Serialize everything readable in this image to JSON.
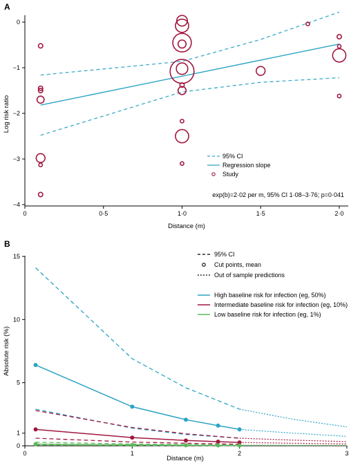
{
  "chart_data": [
    {
      "panel": "A",
      "type": "scatter",
      "xlabel": "Distance (m)",
      "ylabel": "Log risk ratio",
      "xlim": [
        0,
        2.05
      ],
      "ylim": [
        -4,
        0.2
      ],
      "x_ticks": [
        "0",
        "0·5",
        "1·0",
        "1·5",
        "2·0"
      ],
      "y_ticks": [
        "0",
        "−1",
        "−2",
        "−3",
        "−4"
      ],
      "colors": {
        "ci": "#3aaac8",
        "slope": "#2aa4c4",
        "study": "#a0173f"
      },
      "studies": [
        {
          "x": 0.1,
          "y": -0.52,
          "size": 1.0
        },
        {
          "x": 0.1,
          "y": -1.45,
          "size": 1.0
        },
        {
          "x": 0.1,
          "y": -1.5,
          "size": 1.0
        },
        {
          "x": 0.1,
          "y": -1.7,
          "size": 1.6
        },
        {
          "x": 0.1,
          "y": -2.98,
          "size": 2.0
        },
        {
          "x": 0.1,
          "y": -3.13,
          "size": 0.8
        },
        {
          "x": 0.1,
          "y": -3.78,
          "size": 1.0
        },
        {
          "x": 1.0,
          "y": 0.03,
          "size": 2.4
        },
        {
          "x": 1.0,
          "y": -0.08,
          "size": 3.0
        },
        {
          "x": 1.0,
          "y": -0.45,
          "size": 4.2
        },
        {
          "x": 1.0,
          "y": -0.48,
          "size": 1.8
        },
        {
          "x": 1.0,
          "y": -1.02,
          "size": 2.6
        },
        {
          "x": 1.0,
          "y": -1.08,
          "size": 5.4
        },
        {
          "x": 1.0,
          "y": -1.38,
          "size": 1.0
        },
        {
          "x": 1.0,
          "y": -1.5,
          "size": 1.8
        },
        {
          "x": 1.0,
          "y": -2.17,
          "size": 0.8
        },
        {
          "x": 1.0,
          "y": -2.5,
          "size": 3.0
        },
        {
          "x": 1.0,
          "y": -3.1,
          "size": 0.8
        },
        {
          "x": 1.5,
          "y": -1.07,
          "size": 2.0
        },
        {
          "x": 1.8,
          "y": -0.04,
          "size": 0.8
        },
        {
          "x": 2.0,
          "y": -0.32,
          "size": 1.0
        },
        {
          "x": 2.0,
          "y": -0.53,
          "size": 0.8
        },
        {
          "x": 2.0,
          "y": -0.73,
          "size": 3.0
        },
        {
          "x": 2.0,
          "y": -1.62,
          "size": 0.8
        }
      ],
      "slope": {
        "x": [
          0.1,
          2.0
        ],
        "y": [
          -1.82,
          -0.48
        ]
      },
      "ci_upper": {
        "x": [
          0.1,
          1.0,
          1.5,
          2.0
        ],
        "y": [
          -1.16,
          -0.86,
          -0.38,
          0.22
        ]
      },
      "ci_lower": {
        "x": [
          0.1,
          1.0,
          1.5,
          2.0
        ],
        "y": [
          -2.48,
          -1.53,
          -1.32,
          -1.22
        ]
      },
      "legend": {
        "position": "bottom-right",
        "items": [
          {
            "label": "95% CI",
            "style": "dashed"
          },
          {
            "label": "Regression slope",
            "style": "solid"
          },
          {
            "label": "Study",
            "style": "circle"
          }
        ]
      },
      "annotation": "exp(b)=2·02 per m, 95% CI 1·08–3·76; p=0·041"
    },
    {
      "panel": "B",
      "type": "line",
      "xlabel": "Distance (m)",
      "ylabel": "Absolute risk (%)",
      "xlim": [
        0,
        3
      ],
      "ylim": [
        0,
        15
      ],
      "x_ticks": [
        "0",
        "1",
        "2",
        "3"
      ],
      "y_ticks": [
        "0",
        "1",
        "5",
        "10",
        "15"
      ],
      "y_tick_values": [
        0,
        1,
        5,
        10,
        15
      ],
      "legend": {
        "position": "top-right",
        "style_items": [
          {
            "label": "95% CI",
            "style": "dashed"
          },
          {
            "label": "Cut points, mean",
            "style": "circle"
          },
          {
            "label": "Out of sample predictions",
            "style": "dotted"
          }
        ],
        "series_items": [
          {
            "label": "High baseline risk for infection (eg, 50%)",
            "color": "#2aa4c4"
          },
          {
            "label": "Intermediate baseline risk for infection (eg, 10%)",
            "color": "#a0173f"
          },
          {
            "label": "Low baseline risk for infection (eg, 1%)",
            "color": "#5cb85c"
          }
        ]
      },
      "series": [
        {
          "color": "#2aa4c4",
          "mean": {
            "x": [
              0.1,
              1.0,
              1.5,
              1.8,
              2.0
            ],
            "y": [
              6.4,
              3.1,
              2.07,
              1.6,
              1.3
            ]
          },
          "ci_upper": {
            "x": [
              0.1,
              1.0,
              1.5,
              2.0
            ],
            "y": [
              14.1,
              6.9,
              4.6,
              2.9
            ]
          },
          "ci_lower": {
            "x": [
              0.1,
              1.0,
              1.5,
              2.0
            ],
            "y": [
              2.9,
              1.4,
              0.9,
              0.6
            ]
          },
          "oos_mean": {
            "x": [
              2.0,
              2.5,
              3.0
            ],
            "y": [
              1.3,
              1.0,
              0.75
            ]
          },
          "oos_upper": {
            "x": [
              2.0,
              2.5,
              3.0
            ],
            "y": [
              2.9,
              2.1,
              1.5
            ]
          }
        },
        {
          "color": "#a0173f",
          "mean": {
            "x": [
              0.1,
              1.0,
              1.5,
              1.8,
              2.0
            ],
            "y": [
              1.3,
              0.65,
              0.42,
              0.33,
              0.27
            ]
          },
          "ci_upper": {
            "x": [
              0.1,
              1.0,
              1.5,
              2.0
            ],
            "y": [
              2.8,
              1.45,
              0.95,
              0.6
            ]
          },
          "ci_lower": {
            "x": [
              0.1,
              1.0,
              1.5,
              2.0
            ],
            "y": [
              0.6,
              0.3,
              0.2,
              0.12
            ]
          },
          "oos_mean": {
            "x": [
              2.0,
              2.5,
              3.0
            ],
            "y": [
              0.27,
              0.2,
              0.15
            ]
          },
          "oos_upper": {
            "x": [
              2.0,
              2.5,
              3.0
            ],
            "y": [
              0.6,
              0.45,
              0.33
            ]
          }
        },
        {
          "color": "#5cb85c",
          "mean": {
            "x": [
              0.1,
              1.0,
              1.5,
              1.8,
              2.0
            ],
            "y": [
              0.13,
              0.065,
              0.042,
              0.033,
              0.027
            ]
          },
          "ci_upper": {
            "x": [
              0.1,
              1.0,
              1.5,
              2.0
            ],
            "y": [
              0.28,
              0.15,
              0.1,
              0.06
            ]
          },
          "ci_lower": {
            "x": [
              0.1,
              1.0,
              1.5,
              2.0
            ],
            "y": [
              0.06,
              0.03,
              0.02,
              0.012
            ]
          },
          "oos_mean": {
            "x": [
              2.0,
              2.5,
              3.0
            ],
            "y": [
              0.027,
              0.02,
              0.015
            ]
          },
          "oos_upper": {
            "x": [
              2.0,
              2.5,
              3.0
            ],
            "y": [
              0.06,
              0.045,
              0.033
            ]
          }
        }
      ]
    }
  ]
}
